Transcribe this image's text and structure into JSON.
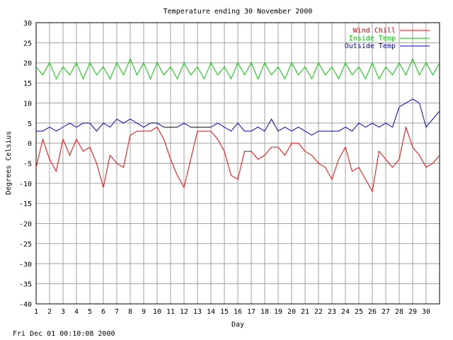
{
  "footer_text": "Fri Dec 01 00:10:08 2000",
  "chart_data": {
    "type": "line",
    "title": "Temperature ending 30 November 2000",
    "xlabel": "Day",
    "ylabel": "Degrees Celsius",
    "xlim": [
      1,
      31
    ],
    "ylim": [
      -40,
      30
    ],
    "yticks": [
      -40,
      -35,
      -30,
      -25,
      -20,
      -15,
      -10,
      -5,
      0,
      5,
      10,
      15,
      20,
      25,
      30
    ],
    "xticks": [
      1,
      2,
      3,
      4,
      5,
      6,
      7,
      8,
      9,
      10,
      11,
      12,
      13,
      14,
      15,
      16,
      17,
      18,
      19,
      20,
      21,
      22,
      23,
      24,
      25,
      26,
      27,
      28,
      29,
      30
    ],
    "grid": true,
    "legend_position": "top-right",
    "series": [
      {
        "name": "Wind Chill",
        "color": "#ff0000",
        "x": [
          1.0,
          1.5,
          2.0,
          2.5,
          3.0,
          3.5,
          4.0,
          4.5,
          5.0,
          5.5,
          6.0,
          6.5,
          7.0,
          7.5,
          8.0,
          8.5,
          9.0,
          9.5,
          10.0,
          10.5,
          11.0,
          11.5,
          12.0,
          12.5,
          13.0,
          13.5,
          14.0,
          14.5,
          15.0,
          15.5,
          16.0,
          16.5,
          17.0,
          17.5,
          18.0,
          18.5,
          19.0,
          19.5,
          20.0,
          20.5,
          21.0,
          21.5,
          22.0,
          22.5,
          23.0,
          23.5,
          24.0,
          24.5,
          25.0,
          25.5,
          26.0,
          26.5,
          27.0,
          27.5,
          28.0,
          28.5,
          29.0,
          29.5,
          30.0,
          30.5,
          31.0
        ],
        "y": [
          -6,
          1,
          -4,
          -7,
          1,
          -3,
          1,
          -2,
          -1,
          -5,
          -11,
          -3,
          -5,
          -6,
          2,
          3,
          3,
          3,
          4,
          1,
          -4,
          -8,
          -11,
          -4,
          3,
          3,
          3,
          1,
          -2,
          -8,
          -9,
          -2,
          -2,
          -4,
          -3,
          -1,
          -1,
          -3,
          0,
          0,
          -2,
          -3,
          -5,
          -6,
          -9,
          -4,
          -1,
          -7,
          -6,
          -9,
          -12,
          -2,
          -4,
          -6,
          -4,
          4,
          -1,
          -3,
          -6,
          -5,
          -3
        ]
      },
      {
        "name": "Inside Temp",
        "color": "#00cc00",
        "x": [
          1.0,
          1.5,
          2.0,
          2.5,
          3.0,
          3.5,
          4.0,
          4.5,
          5.0,
          5.5,
          6.0,
          6.5,
          7.0,
          7.5,
          8.0,
          8.5,
          9.0,
          9.5,
          10.0,
          10.5,
          11.0,
          11.5,
          12.0,
          12.5,
          13.0,
          13.5,
          14.0,
          14.5,
          15.0,
          15.5,
          16.0,
          16.5,
          17.0,
          17.5,
          18.0,
          18.5,
          19.0,
          19.5,
          20.0,
          20.5,
          21.0,
          21.5,
          22.0,
          22.5,
          23.0,
          23.5,
          24.0,
          24.5,
          25.0,
          25.5,
          26.0,
          26.5,
          27.0,
          27.5,
          28.0,
          28.5,
          29.0,
          29.5,
          30.0,
          30.5,
          31.0
        ],
        "y": [
          19,
          17,
          20,
          16,
          19,
          17,
          20,
          16,
          20,
          17,
          19,
          16,
          20,
          17,
          21,
          17,
          20,
          16,
          20,
          17,
          19,
          16,
          20,
          17,
          19,
          16,
          20,
          17,
          19,
          16,
          20,
          17,
          20,
          16,
          20,
          17,
          19,
          16,
          20,
          17,
          19,
          16,
          20,
          17,
          19,
          16,
          20,
          17,
          19,
          16,
          20,
          16,
          19,
          17,
          20,
          17,
          21,
          17,
          20,
          17,
          20
        ]
      },
      {
        "name": "Outside Temp",
        "color": "#0000cc",
        "x": [
          1.0,
          1.5,
          2.0,
          2.5,
          3.0,
          3.5,
          4.0,
          4.5,
          5.0,
          5.5,
          6.0,
          6.5,
          7.0,
          7.5,
          8.0,
          8.5,
          9.0,
          9.5,
          10.0,
          10.5,
          11.0,
          11.5,
          12.0,
          12.5,
          13.0,
          13.5,
          14.0,
          14.5,
          15.0,
          15.5,
          16.0,
          16.5,
          17.0,
          17.5,
          18.0,
          18.5,
          19.0,
          19.5,
          20.0,
          20.5,
          21.0,
          21.5,
          22.0,
          22.5,
          23.0,
          23.5,
          24.0,
          24.5,
          25.0,
          25.5,
          26.0,
          26.5,
          27.0,
          27.5,
          28.0,
          28.5,
          29.0,
          29.5,
          30.0,
          30.5,
          31.0
        ],
        "y": [
          3,
          3,
          4,
          3,
          4,
          5,
          4,
          5,
          5,
          3,
          5,
          4,
          6,
          5,
          6,
          5,
          4,
          5,
          5,
          4,
          4,
          4,
          5,
          4,
          4,
          4,
          4,
          5,
          4,
          3,
          5,
          3,
          3,
          4,
          3,
          6,
          3,
          4,
          3,
          4,
          3,
          2,
          3,
          3,
          3,
          3,
          4,
          3,
          5,
          4,
          5,
          4,
          5,
          4,
          9,
          10,
          11,
          10,
          4,
          6,
          8
        ]
      }
    ]
  }
}
